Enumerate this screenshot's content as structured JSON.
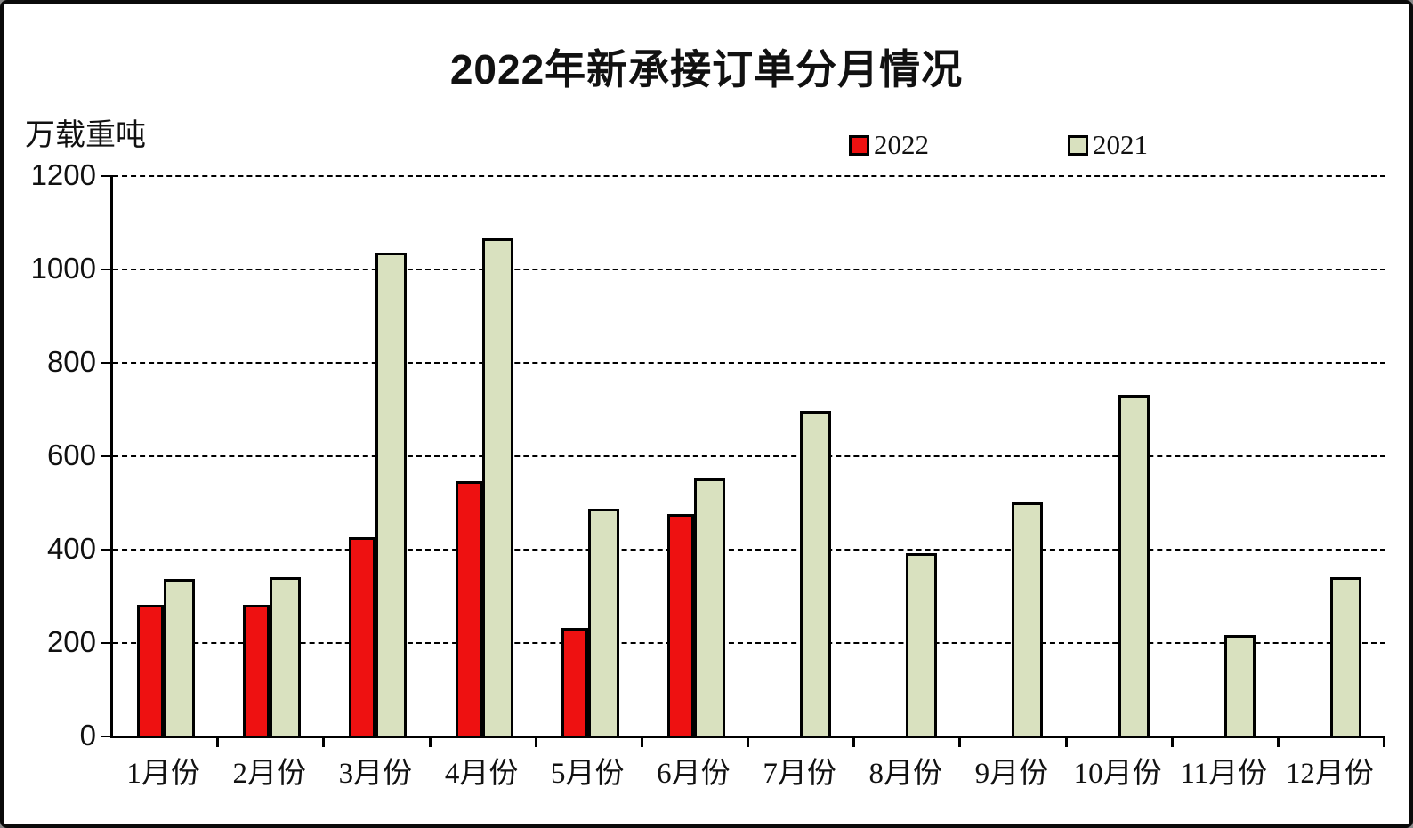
{
  "title": "2022年新承接订单分月情况",
  "y_axis_unit": "万载重吨",
  "legend": {
    "items": [
      {
        "label": "2022",
        "color": "#ee1111"
      },
      {
        "label": "2021",
        "color": "#d9e1bf"
      }
    ]
  },
  "chart_data": {
    "type": "bar",
    "title": "2022年新承接订单分月情况",
    "xlabel": "",
    "ylabel": "万载重吨",
    "categories": [
      "1月份",
      "2月份",
      "3月份",
      "4月份",
      "5月份",
      "6月份",
      "7月份",
      "8月份",
      "9月份",
      "10月份",
      "11月份",
      "12月份"
    ],
    "series": [
      {
        "name": "2022",
        "color": "#ee1111",
        "values": [
          280,
          280,
          425,
          545,
          230,
          475,
          null,
          null,
          null,
          null,
          null,
          null
        ]
      },
      {
        "name": "2021",
        "color": "#d9e1bf",
        "values": [
          335,
          340,
          1035,
          1065,
          485,
          550,
          695,
          390,
          500,
          730,
          215,
          340
        ]
      }
    ],
    "ylim": [
      0,
      1200
    ],
    "yticks": [
      0,
      200,
      400,
      600,
      800,
      1000,
      1200
    ],
    "grid": true,
    "grid_style": "dashed",
    "legend_position": "top",
    "bar_border_color": "#000000",
    "background_color": "#ffffff"
  }
}
